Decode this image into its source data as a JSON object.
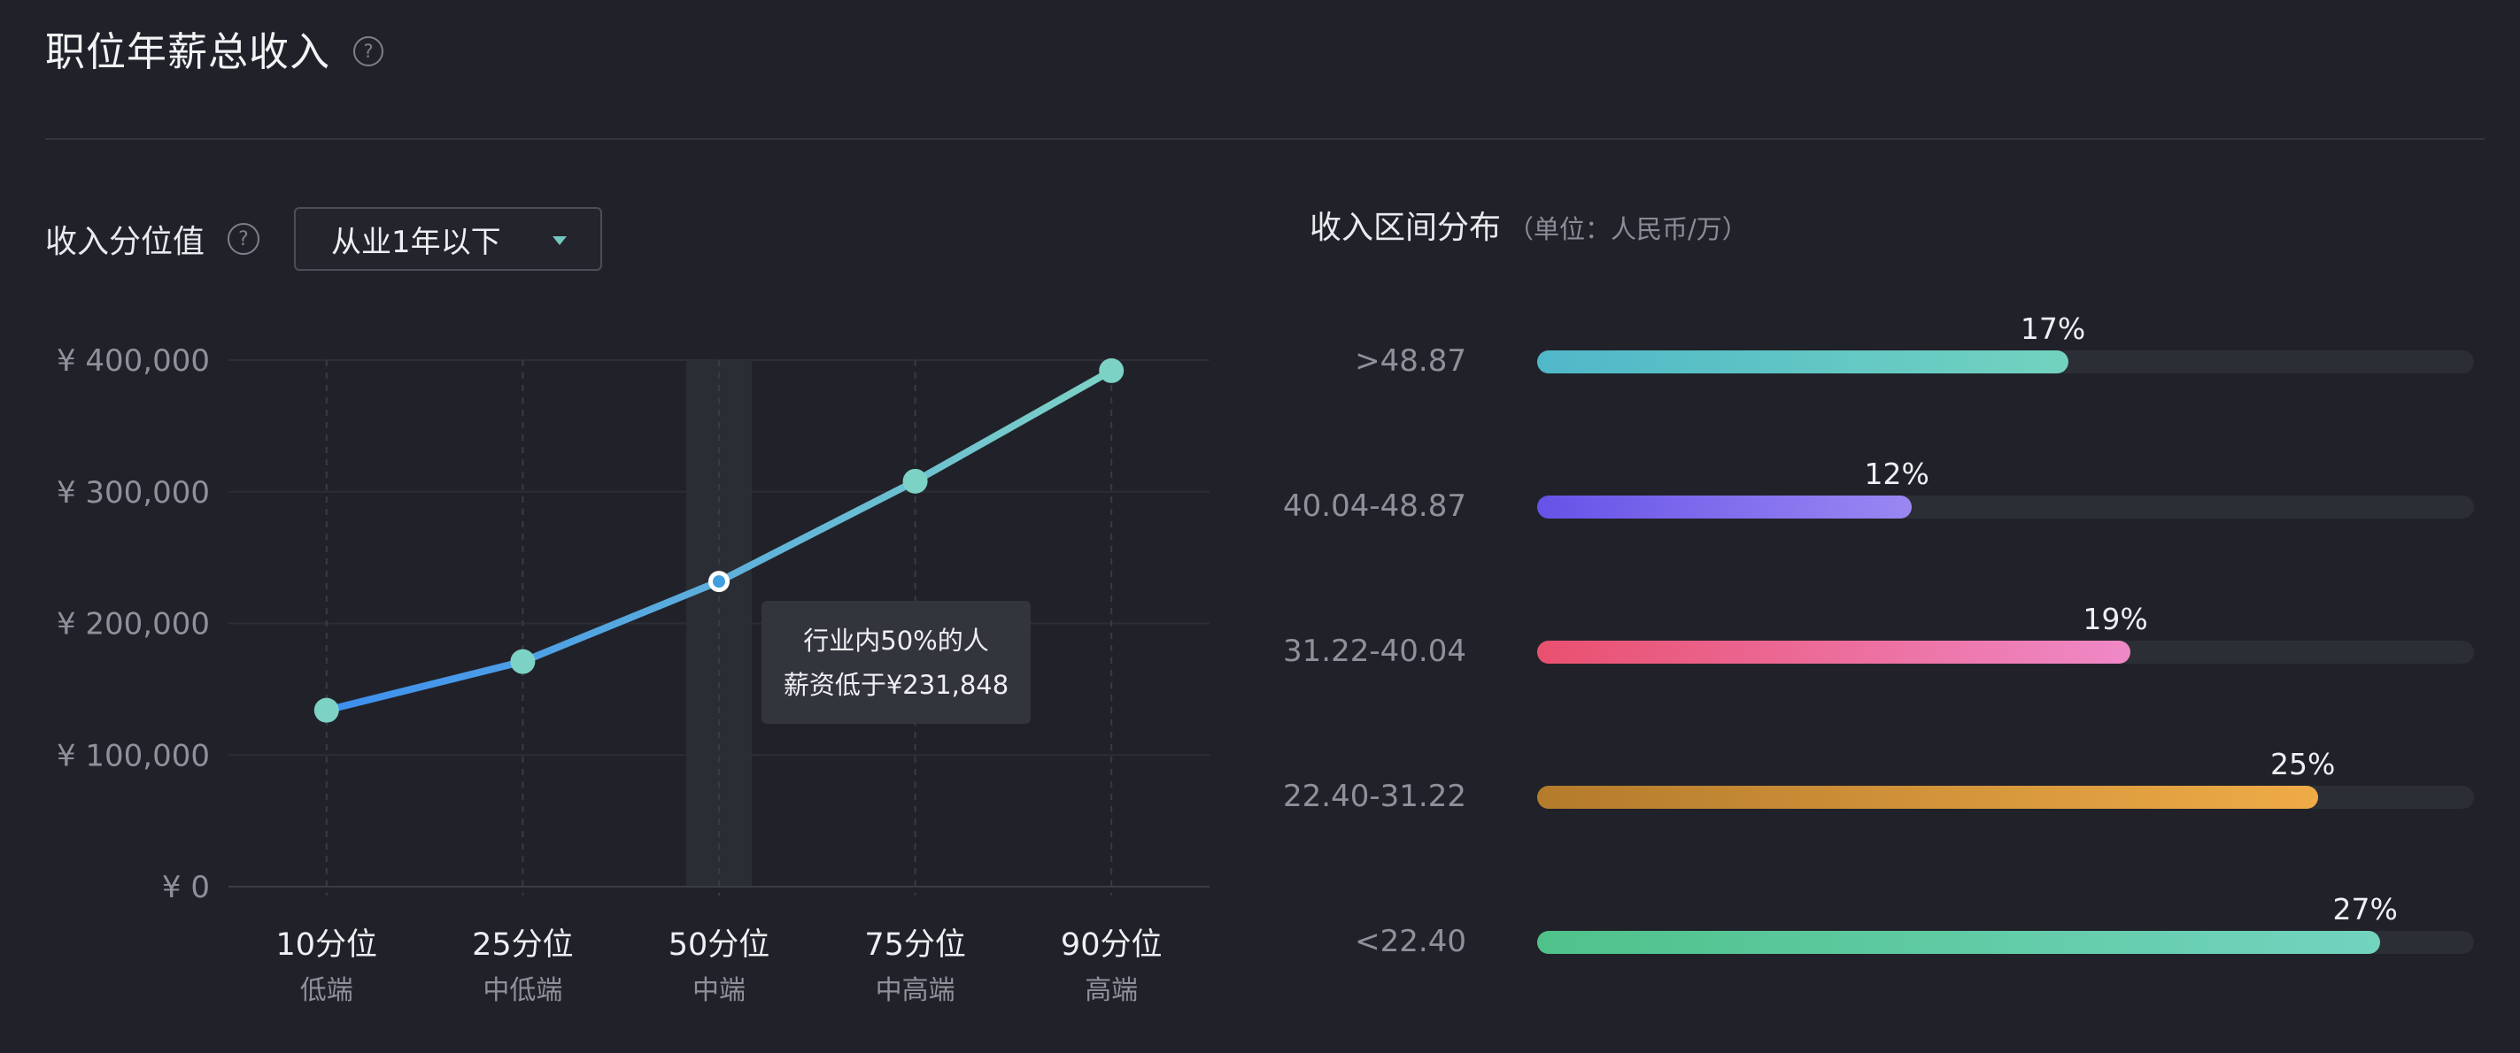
{
  "header": {
    "title": "职位年薪总收入",
    "help_icon": "?"
  },
  "percentile": {
    "title": "收入分位值",
    "help_icon": "?",
    "dropdown": {
      "selected": "从业1年以下"
    },
    "tooltip": {
      "line1": "行业内50%的人",
      "line2": "薪资低于¥231,848"
    }
  },
  "distribution": {
    "title": "收入区间分布",
    "unit": "（单位：人民币/万）",
    "bars": [
      {
        "label": ">48.87",
        "percent_text": "17%",
        "value": 17,
        "colors": [
          "#4fb7c9",
          "#72d3bf"
        ]
      },
      {
        "label": "40.04-48.87",
        "percent_text": "12%",
        "value": 12,
        "colors": [
          "#6553e8",
          "#9a87f2"
        ]
      },
      {
        "label": "31.22-40.04",
        "percent_text": "19%",
        "value": 19,
        "colors": [
          "#e9506f",
          "#ef89c7"
        ]
      },
      {
        "label": "22.40-31.22",
        "percent_text": "25%",
        "value": 25,
        "colors": [
          "#b47b2c",
          "#efab47"
        ]
      },
      {
        "label": "<22.40",
        "percent_text": "27%",
        "value": 27,
        "colors": [
          "#4fc28a",
          "#72d3bf"
        ]
      }
    ]
  },
  "chart_data": {
    "type": "line",
    "categories": [
      "10分位",
      "25分位",
      "50分位",
      "75分位",
      "90分位"
    ],
    "sublabels": [
      "低端",
      "中低端",
      "中端",
      "中高端",
      "高端"
    ],
    "values": [
      134000,
      171000,
      231848,
      308000,
      392000
    ],
    "ylim": [
      0,
      400000
    ],
    "yticks": [
      "¥ 0",
      "¥ 100,000",
      "¥ 200,000",
      "¥ 300,000",
      "¥ 400,000"
    ],
    "highlight_index": 2,
    "grid": true,
    "line_colors": [
      "#3d8ef0",
      "#7dd2c6"
    ],
    "marker_color": "#7dd2c6"
  }
}
